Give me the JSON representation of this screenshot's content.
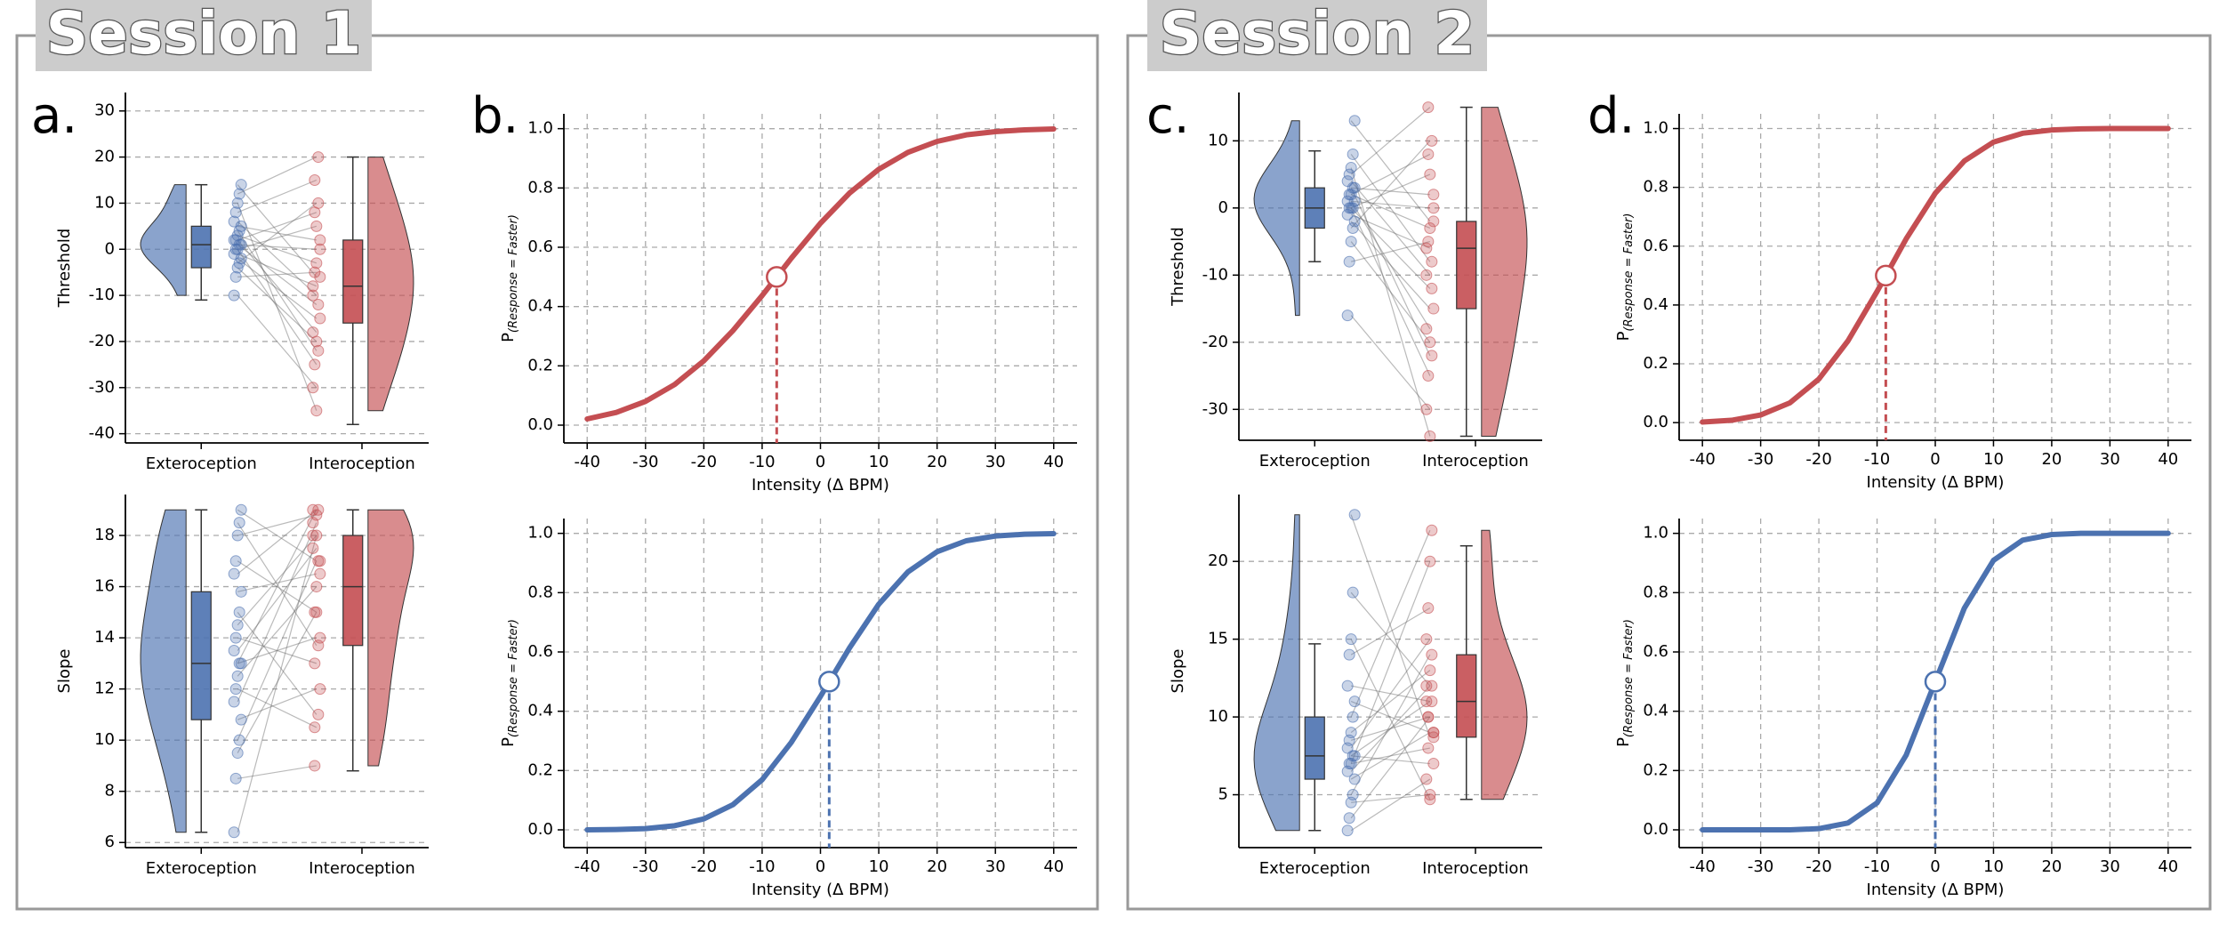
{
  "sessions": [
    {
      "title": "Session 1"
    },
    {
      "title": "Session 2"
    }
  ],
  "chart_data": [
    {
      "type": "raincloud",
      "panel_label": "a.",
      "ylabel": "Threshold",
      "ylim": [
        -42,
        34
      ],
      "yticks": [
        -40,
        -30,
        -20,
        -10,
        0,
        10,
        20,
        30
      ],
      "categories": [
        "Exteroception",
        "Interoception"
      ],
      "groups": [
        {
          "color": "#4c72b0",
          "box": {
            "whislo": -11,
            "q1": -4,
            "med": 1,
            "q3": 5,
            "whishi": 14
          },
          "points": [
            -10,
            -6,
            -4,
            -3,
            -2,
            -1,
            0,
            0,
            1,
            1,
            2,
            2,
            3,
            4,
            5,
            6,
            8,
            10,
            12,
            14
          ]
        },
        {
          "color": "#c44e52",
          "box": {
            "whislo": -38,
            "q1": -16,
            "med": -8,
            "q3": 2,
            "whishi": 20
          },
          "points": [
            -30,
            -5,
            -20,
            10,
            -15,
            -8,
            -25,
            5,
            -12,
            0,
            -18,
            8,
            -3,
            -22,
            2,
            -10,
            15,
            -35,
            20,
            -6
          ]
        }
      ]
    },
    {
      "type": "raincloud",
      "ylabel": "Slope",
      "ylim": [
        5.8,
        19.6
      ],
      "yticks": [
        6,
        8,
        10,
        12,
        14,
        16,
        18
      ],
      "categories": [
        "Exteroception",
        "Interoception"
      ],
      "groups": [
        {
          "color": "#4c72b0",
          "box": {
            "whislo": 6.4,
            "q1": 10.8,
            "med": 13,
            "q3": 15.8,
            "whishi": 19
          },
          "points": [
            6.4,
            8.5,
            9.5,
            10,
            10.8,
            11.5,
            12,
            12.5,
            13,
            13,
            13.5,
            14,
            14.5,
            15,
            15.8,
            16.5,
            17,
            18,
            18.5,
            19
          ]
        },
        {
          "color": "#c44e52",
          "box": {
            "whislo": 8.8,
            "q1": 13.7,
            "med": 16,
            "q3": 18,
            "whishi": 19
          },
          "points": [
            18,
            9,
            15,
            17,
            12,
            18.5,
            10.5,
            16,
            19,
            14,
            17.5,
            13,
            18,
            11,
            16.5,
            19,
            15,
            18.8,
            13.7,
            17
          ]
        }
      ]
    },
    {
      "type": "line",
      "panel_label": "b.",
      "xlabel": "Intensity (Δ BPM)",
      "ylabel": {
        "base": "P",
        "sub": "(Response = Faster)"
      },
      "xlim": [
        -44,
        44
      ],
      "ylim": [
        -0.06,
        1.05
      ],
      "xticks": [
        -40,
        -30,
        -20,
        -10,
        0,
        10,
        20,
        30,
        40
      ],
      "yticks": [
        {
          "value": 0,
          "label": "0.0"
        },
        {
          "value": 0.2,
          "label": "0.2"
        },
        {
          "value": 0.4,
          "label": "0.4"
        },
        {
          "value": 0.6,
          "label": "0.6"
        },
        {
          "value": 0.8,
          "label": "0.8"
        },
        {
          "value": 1,
          "label": "1.0"
        }
      ],
      "x": [
        -40,
        -35,
        -30,
        -25,
        -20,
        -15,
        -10,
        -5,
        0,
        5,
        10,
        15,
        20,
        25,
        30,
        35,
        40
      ],
      "series": [
        {
          "color": "#c44e52",
          "values": [
            0.021,
            0.043,
            0.08,
            0.137,
            0.217,
            0.319,
            0.437,
            0.563,
            0.681,
            0.783,
            0.863,
            0.92,
            0.957,
            0.979,
            0.99,
            0.996,
            0.999
          ]
        }
      ],
      "threshold": {
        "x": -7.5,
        "y": 0.5
      }
    },
    {
      "type": "line",
      "xlabel": "Intensity (Δ BPM)",
      "ylabel": {
        "base": "P",
        "sub": "(Response = Faster)"
      },
      "xlim": [
        -44,
        44
      ],
      "ylim": [
        -0.06,
        1.05
      ],
      "xticks": [
        -40,
        -30,
        -20,
        -10,
        0,
        10,
        20,
        30,
        40
      ],
      "yticks": [
        {
          "value": 0,
          "label": "0.0"
        },
        {
          "value": 0.2,
          "label": "0.2"
        },
        {
          "value": 0.4,
          "label": "0.4"
        },
        {
          "value": 0.6,
          "label": "0.6"
        },
        {
          "value": 0.8,
          "label": "0.8"
        },
        {
          "value": 1,
          "label": "1.0"
        }
      ],
      "x": [
        -40,
        -35,
        -30,
        -25,
        -20,
        -15,
        -10,
        -5,
        0,
        5,
        10,
        15,
        20,
        25,
        30,
        35,
        40
      ],
      "series": [
        {
          "color": "#4c72b0",
          "values": [
            0.0,
            0.001,
            0.004,
            0.014,
            0.037,
            0.085,
            0.169,
            0.295,
            0.45,
            0.614,
            0.761,
            0.87,
            0.938,
            0.975,
            0.991,
            0.997,
            0.999
          ]
        }
      ],
      "threshold": {
        "x": 1.5,
        "y": 0.5
      }
    },
    {
      "type": "raincloud",
      "panel_label": "c.",
      "ylabel": "Threshold",
      "ylim": [
        -34.6,
        17.2
      ],
      "yticks": [
        -30,
        -20,
        -10,
        0,
        10
      ],
      "categories": [
        "Exteroception",
        "Interoception"
      ],
      "groups": [
        {
          "color": "#4c72b0",
          "box": {
            "whislo": -8,
            "q1": -3,
            "med": 0,
            "q3": 3,
            "whishi": 8.5
          },
          "points": [
            -16,
            -8,
            -5,
            -3,
            -2,
            -1,
            0,
            0,
            0,
            1,
            1,
            2,
            2,
            3,
            3,
            4,
            5,
            6,
            8,
            13
          ]
        },
        {
          "color": "#c44e52",
          "box": {
            "whislo": -34,
            "q1": -15,
            "med": -6,
            "q3": -2,
            "whishi": 15
          },
          "points": [
            -30,
            -5,
            -20,
            10,
            -15,
            -6,
            -25,
            5,
            -12,
            0,
            -18,
            8,
            -3,
            -22,
            2,
            -10,
            15,
            -34,
            -8,
            -2
          ]
        }
      ]
    },
    {
      "type": "raincloud",
      "ylabel": "Slope",
      "ylim": [
        1.6,
        24.3
      ],
      "yticks": [
        5,
        10,
        15,
        20
      ],
      "categories": [
        "Exteroception",
        "Interoception"
      ],
      "groups": [
        {
          "color": "#4c72b0",
          "box": {
            "whislo": 2.7,
            "q1": 6,
            "med": 7.5,
            "q3": 10,
            "whishi": 14.7
          },
          "points": [
            2.7,
            3.5,
            4.5,
            5,
            6,
            6.5,
            7,
            7,
            7.5,
            7.5,
            8,
            8.5,
            9,
            10,
            11,
            12,
            14,
            15,
            18,
            23
          ]
        },
        {
          "color": "#c44e52",
          "box": {
            "whislo": 4.7,
            "q1": 8.7,
            "med": 11,
            "q3": 14,
            "whishi": 21
          },
          "points": [
            6,
            10,
            5,
            14,
            9,
            12,
            8,
            20,
            11,
            7,
            15,
            10,
            13,
            22,
            9,
            11,
            17,
            4.7,
            12,
            8.7
          ]
        }
      ]
    },
    {
      "type": "line",
      "panel_label": "d.",
      "xlabel": "Intensity (Δ BPM)",
      "ylabel": {
        "base": "P",
        "sub": "(Response = Faster)"
      },
      "xlim": [
        -44,
        44
      ],
      "ylim": [
        -0.06,
        1.05
      ],
      "xticks": [
        -40,
        -30,
        -20,
        -10,
        0,
        10,
        20,
        30,
        40
      ],
      "yticks": [
        {
          "value": 0,
          "label": "0.0"
        },
        {
          "value": 0.2,
          "label": "0.2"
        },
        {
          "value": 0.4,
          "label": "0.4"
        },
        {
          "value": 0.6,
          "label": "0.6"
        },
        {
          "value": 0.8,
          "label": "0.8"
        },
        {
          "value": 1,
          "label": "1.0"
        }
      ],
      "x": [
        -40,
        -35,
        -30,
        -25,
        -20,
        -15,
        -10,
        -5,
        0,
        5,
        10,
        15,
        20,
        25,
        30,
        35,
        40
      ],
      "series": [
        {
          "color": "#c44e52",
          "values": [
            0.002,
            0.008,
            0.026,
            0.067,
            0.148,
            0.278,
            0.446,
            0.625,
            0.78,
            0.89,
            0.954,
            0.984,
            0.995,
            0.999,
            1.0,
            1.0,
            1.0
          ]
        }
      ],
      "threshold": {
        "x": -8.5,
        "y": 0.5
      }
    },
    {
      "type": "line",
      "xlabel": "Intensity (Δ BPM)",
      "ylabel": {
        "base": "P",
        "sub": "(Response = Faster)"
      },
      "xlim": [
        -44,
        44
      ],
      "ylim": [
        -0.06,
        1.05
      ],
      "xticks": [
        -40,
        -30,
        -20,
        -10,
        0,
        10,
        20,
        30,
        40
      ],
      "yticks": [
        {
          "value": 0,
          "label": "0.0"
        },
        {
          "value": 0.2,
          "label": "0.2"
        },
        {
          "value": 0.4,
          "label": "0.4"
        },
        {
          "value": 0.6,
          "label": "0.6"
        },
        {
          "value": 0.8,
          "label": "0.8"
        },
        {
          "value": 1,
          "label": "1.0"
        }
      ],
      "x": [
        -40,
        -35,
        -30,
        -25,
        -20,
        -15,
        -10,
        -5,
        0,
        5,
        10,
        15,
        20,
        25,
        30,
        35,
        40
      ],
      "series": [
        {
          "color": "#4c72b0",
          "values": [
            0.0,
            0.0,
            0.0,
            0.0,
            0.004,
            0.023,
            0.091,
            0.252,
            0.5,
            0.748,
            0.909,
            0.977,
            0.996,
            1.0,
            1.0,
            1.0,
            1.0
          ]
        }
      ],
      "threshold": {
        "x": 0,
        "y": 0.5
      }
    }
  ]
}
